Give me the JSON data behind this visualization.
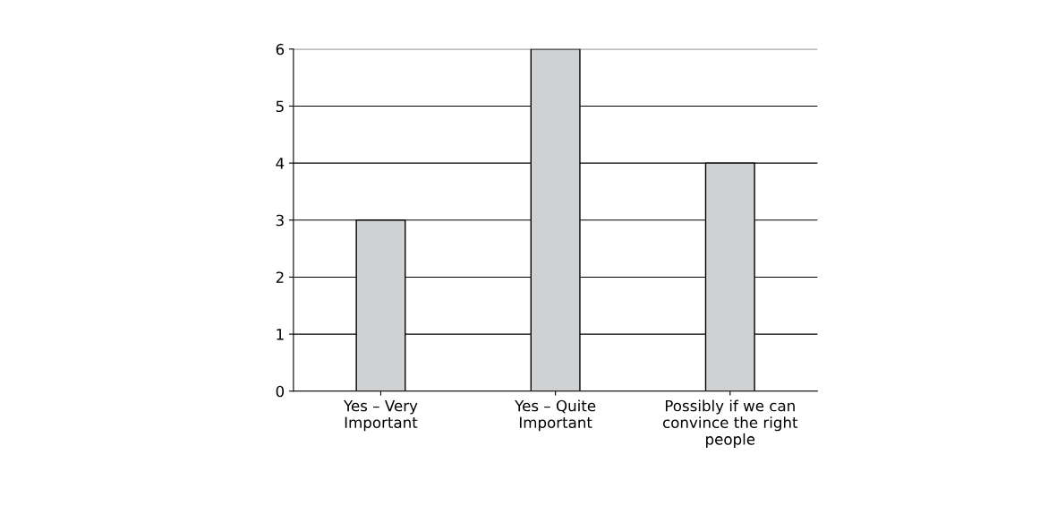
{
  "chart_data": {
    "type": "bar",
    "categories": [
      "Yes – Very\nImportant",
      "Yes – Quite\nImportant",
      "Possibly if we can\nconvince the right\npeople"
    ],
    "values": [
      3,
      6,
      4
    ],
    "color": "#d0d1d3",
    "ylim": [
      0,
      6
    ],
    "yticks": [
      0,
      1,
      2,
      3,
      4,
      5,
      6
    ],
    "grid": "y",
    "legend": false
  }
}
